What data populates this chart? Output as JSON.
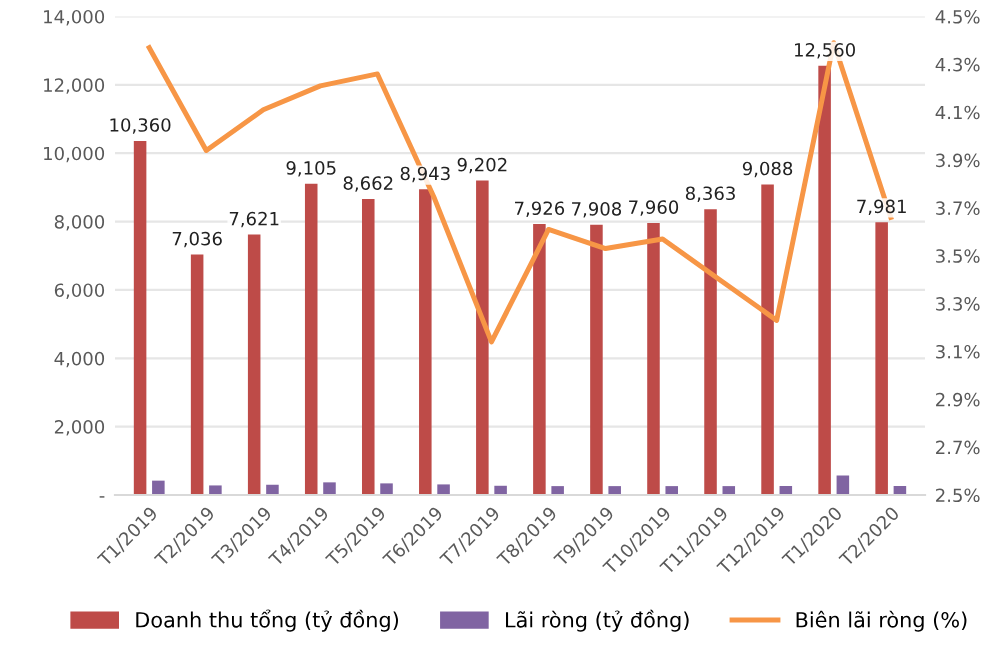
{
  "chart_data": {
    "type": "bar",
    "categories": [
      "T1/2019",
      "T2/2019",
      "T3/2019",
      "T4/2019",
      "T5/2019",
      "T6/2019",
      "T7/2019",
      "T8/2019",
      "T9/2019",
      "T10/2019",
      "T11/2019",
      "T12/2019",
      "T1/2020",
      "T2/2020"
    ],
    "series": [
      {
        "name": "Doanh thu tổng (tỷ đồng)",
        "color": "#be4b48",
        "values": [
          10360,
          7036,
          7621,
          9105,
          8662,
          8943,
          9202,
          7926,
          7908,
          7960,
          8363,
          9088,
          12560,
          7981
        ],
        "value_labels": [
          "10,360",
          "7,036",
          "7,621",
          "9,105",
          "8,662",
          "8,943",
          "9,202",
          "7,926",
          "7,908",
          "7,960",
          "8,363",
          "9,088",
          "12,560",
          "7,981"
        ]
      },
      {
        "name": "Lãi ròng (tỷ đồng)",
        "color": "#8064a2",
        "values": [
          420,
          280,
          300,
          370,
          340,
          310,
          270,
          260,
          260,
          260,
          260,
          260,
          570,
          260
        ]
      },
      {
        "name": "Biên lãi ròng (%)",
        "type": "line",
        "axis": "y2",
        "color": "#f79646",
        "values": [
          4.37,
          3.94,
          4.11,
          4.21,
          4.26,
          3.74,
          3.14,
          3.61,
          3.53,
          3.57,
          3.4,
          3.23,
          4.39,
          3.66
        ]
      }
    ],
    "ylim": [
      0,
      14000
    ],
    "yticks": [
      {
        "value": 0,
        "label": "-"
      },
      {
        "value": 2000,
        "label": "2,000"
      },
      {
        "value": 4000,
        "label": "4,000"
      },
      {
        "value": 6000,
        "label": "6,000"
      },
      {
        "value": 8000,
        "label": "8,000"
      },
      {
        "value": 10000,
        "label": "10,000"
      },
      {
        "value": 12000,
        "label": "12,000"
      },
      {
        "value": 14000,
        "label": "14,000"
      }
    ],
    "y2lim": [
      2.5,
      4.5
    ],
    "y2ticks": [
      {
        "value": 2.5,
        "label": "2.5%"
      },
      {
        "value": 2.7,
        "label": "2.7%"
      },
      {
        "value": 2.9,
        "label": "2.9%"
      },
      {
        "value": 3.1,
        "label": "3.1%"
      },
      {
        "value": 3.3,
        "label": "3.3%"
      },
      {
        "value": 3.5,
        "label": "3.5%"
      },
      {
        "value": 3.7,
        "label": "3.7%"
      },
      {
        "value": 3.9,
        "label": "3.9%"
      },
      {
        "value": 4.1,
        "label": "4.1%"
      },
      {
        "value": 4.3,
        "label": "4.3%"
      },
      {
        "value": 4.5,
        "label": "4.5%"
      }
    ],
    "grid": "y",
    "legend": "bottom",
    "marker": "none"
  }
}
